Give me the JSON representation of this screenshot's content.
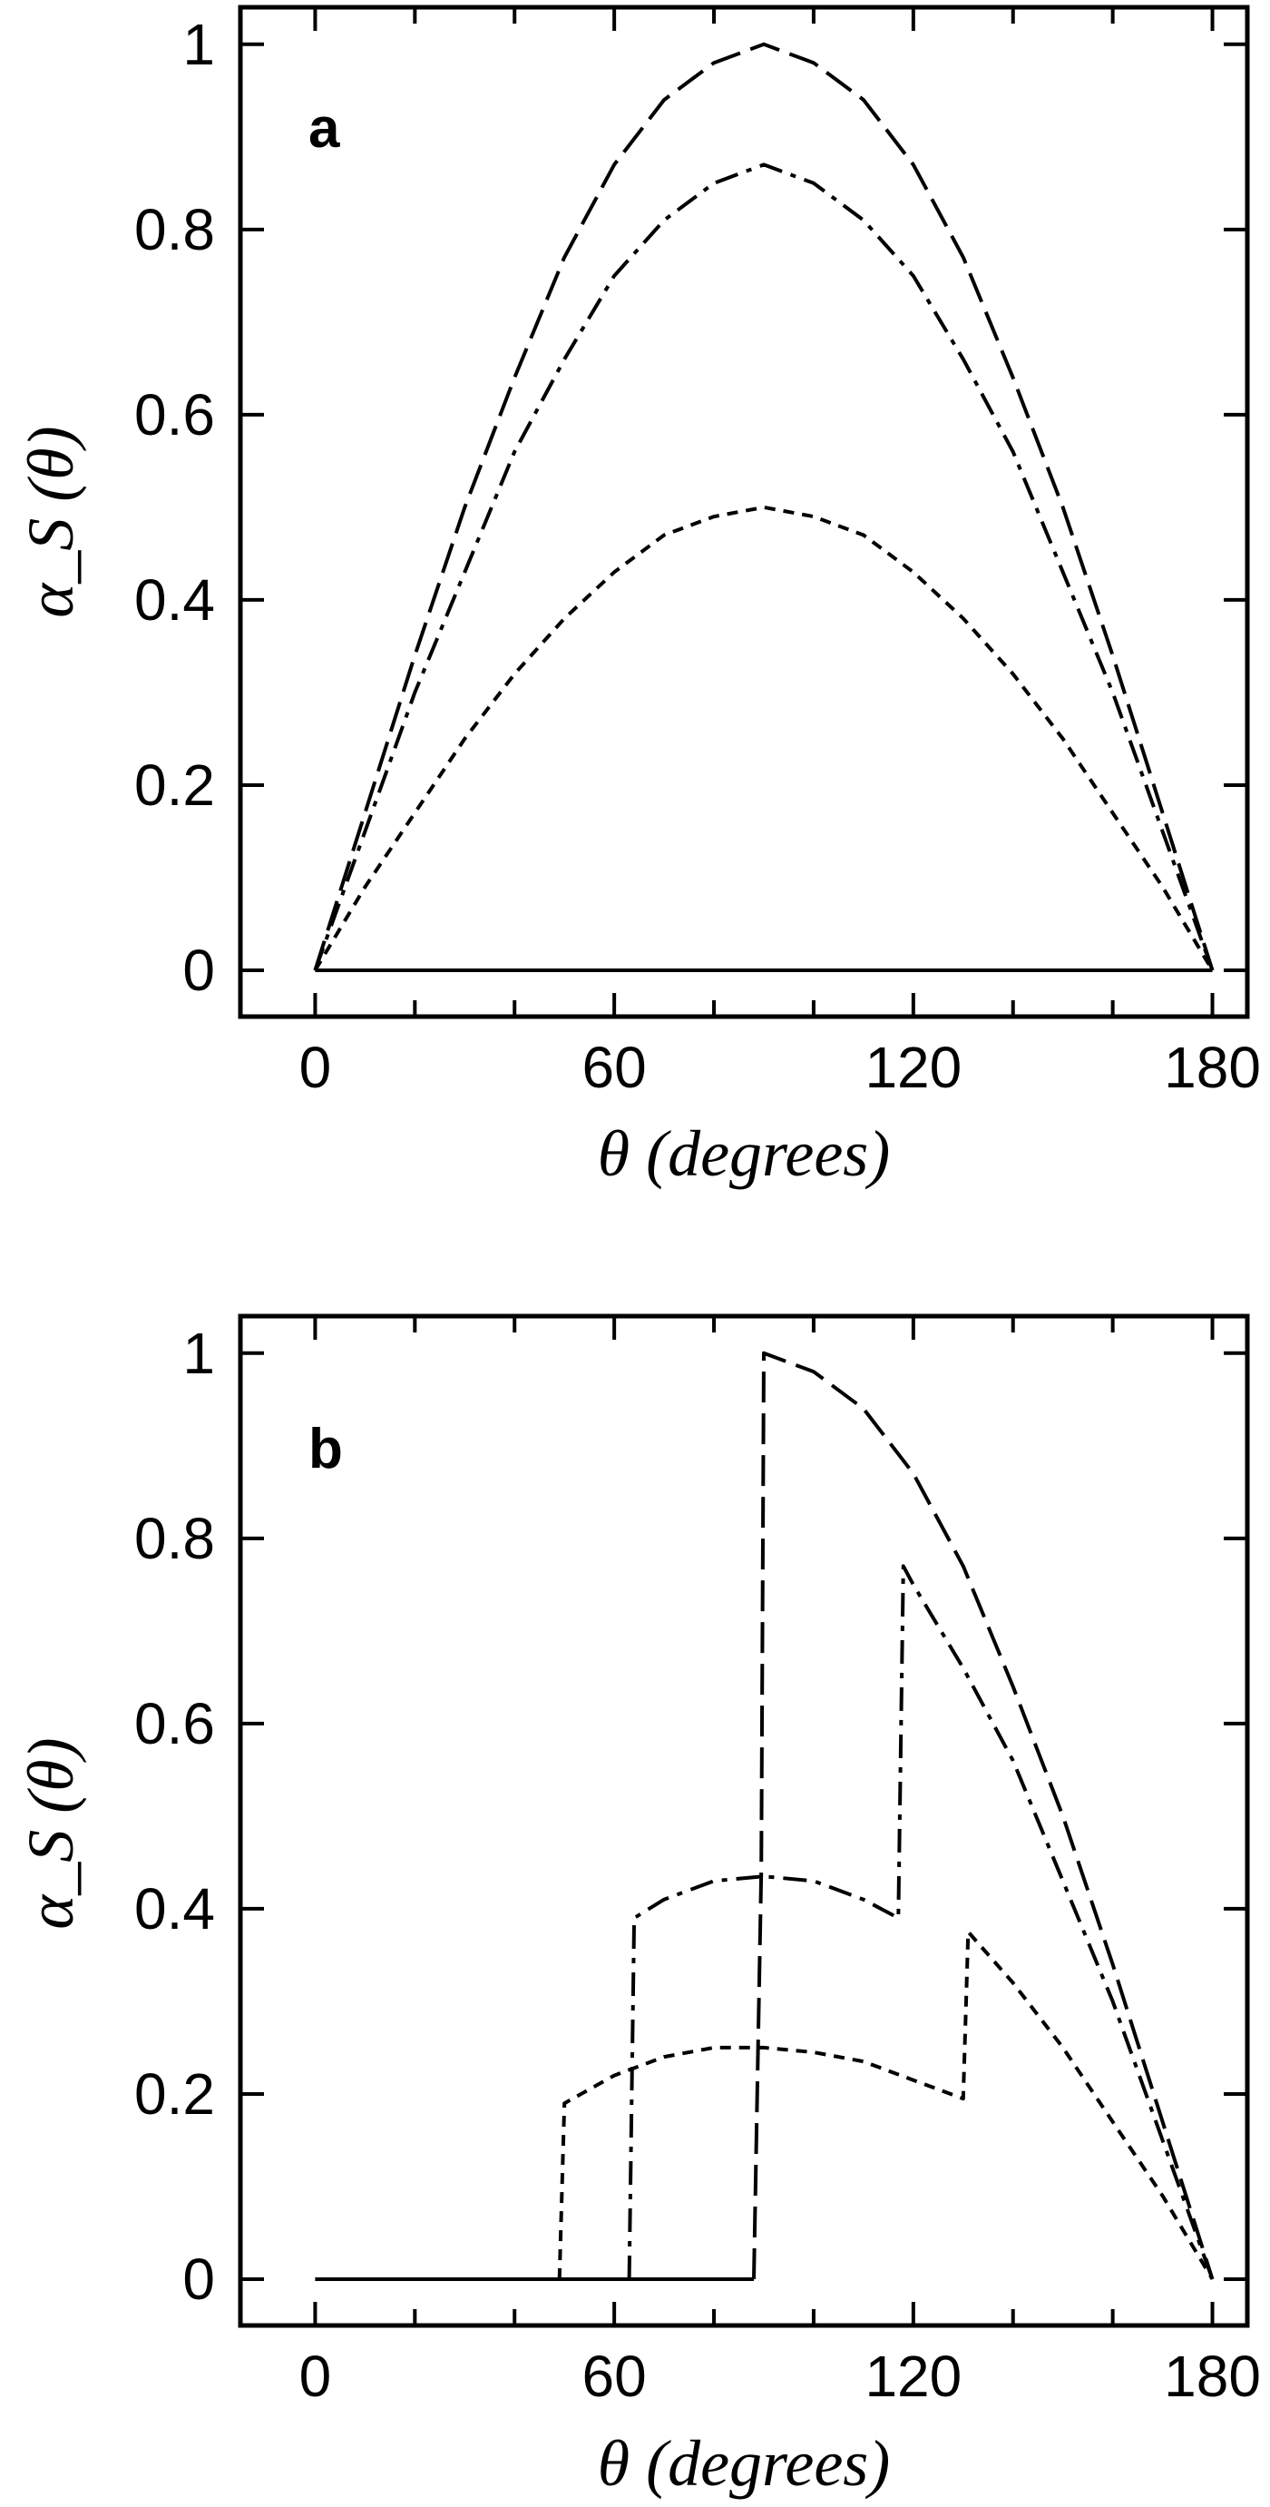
{
  "chart_data": [
    {
      "panel": "a",
      "type": "line",
      "xlabel": "θ (degrees)",
      "ylabel": "α_S (θ)",
      "xlim": [
        -15,
        187
      ],
      "ylim": [
        -0.05,
        1.04
      ],
      "xticks": [
        0,
        60,
        120,
        180
      ],
      "xtick_labels": [
        "0",
        "60",
        "120",
        "180"
      ],
      "xminor_step": 20,
      "yticks": [
        0,
        0.2,
        0.4,
        0.6,
        0.8,
        1
      ],
      "ytick_labels": [
        "0",
        "0.2",
        "0.4",
        "0.6",
        "0.8",
        "1"
      ],
      "grid": false,
      "series": [
        {
          "style": "long-dash",
          "x": [
            0,
            10,
            20,
            30,
            40,
            50,
            60,
            70,
            80,
            90,
            100,
            110,
            120,
            130,
            140,
            150,
            160,
            170,
            180
          ],
          "y": [
            0,
            0.17,
            0.34,
            0.5,
            0.64,
            0.77,
            0.87,
            0.94,
            0.98,
            1.0,
            0.98,
            0.94,
            0.87,
            0.77,
            0.64,
            0.5,
            0.34,
            0.17,
            0
          ]
        },
        {
          "style": "dash-dot",
          "x": [
            0,
            10,
            20,
            30,
            40,
            50,
            60,
            70,
            80,
            90,
            100,
            110,
            120,
            130,
            140,
            150,
            160,
            170,
            180
          ],
          "y": [
            0,
            0.15,
            0.3,
            0.43,
            0.56,
            0.66,
            0.75,
            0.81,
            0.85,
            0.87,
            0.85,
            0.81,
            0.75,
            0.66,
            0.56,
            0.43,
            0.3,
            0.15,
            0
          ]
        },
        {
          "style": "short-dash",
          "x": [
            0,
            10,
            20,
            30,
            40,
            50,
            60,
            70,
            80,
            90,
            100,
            110,
            120,
            130,
            140,
            150,
            160,
            170,
            180
          ],
          "y": [
            0,
            0.09,
            0.17,
            0.25,
            0.32,
            0.38,
            0.43,
            0.47,
            0.49,
            0.5,
            0.49,
            0.47,
            0.43,
            0.38,
            0.32,
            0.25,
            0.17,
            0.09,
            0
          ]
        },
        {
          "style": "solid",
          "x": [
            0,
            180
          ],
          "y": [
            0,
            0
          ]
        }
      ]
    },
    {
      "panel": "b",
      "type": "line",
      "xlabel": "θ (degrees)",
      "ylabel": "α_S (θ)",
      "xlim": [
        -15,
        187
      ],
      "ylim": [
        -0.05,
        1.04
      ],
      "xticks": [
        0,
        60,
        120,
        180
      ],
      "xtick_labels": [
        "0",
        "60",
        "120",
        "180"
      ],
      "xminor_step": 20,
      "yticks": [
        0,
        0.2,
        0.4,
        0.6,
        0.8,
        1
      ],
      "ytick_labels": [
        "0",
        "0.2",
        "0.4",
        "0.6",
        "0.8",
        "1"
      ],
      "grid": false,
      "series": [
        {
          "style": "long-dash",
          "x": [
            88,
            89.5,
            90,
            100,
            110,
            120,
            130,
            140,
            150,
            160,
            170,
            180
          ],
          "y": [
            0,
            0.44,
            1.0,
            0.98,
            0.94,
            0.87,
            0.77,
            0.64,
            0.5,
            0.34,
            0.17,
            0
          ]
        },
        {
          "style": "dash-dot",
          "x": [
            63,
            64,
            70,
            80,
            90,
            100,
            110,
            117,
            118,
            120,
            130,
            140,
            150,
            160,
            170,
            180
          ],
          "y": [
            0,
            0.39,
            0.41,
            0.43,
            0.435,
            0.43,
            0.41,
            0.39,
            0.77,
            0.75,
            0.66,
            0.56,
            0.43,
            0.3,
            0.15,
            0
          ]
        },
        {
          "style": "short-dash",
          "x": [
            49,
            50,
            60,
            70,
            80,
            90,
            100,
            110,
            120,
            130,
            131,
            140,
            150,
            160,
            170,
            180
          ],
          "y": [
            0,
            0.19,
            0.22,
            0.24,
            0.25,
            0.25,
            0.245,
            0.235,
            0.215,
            0.195,
            0.375,
            0.32,
            0.25,
            0.17,
            0.09,
            0
          ]
        },
        {
          "style": "solid",
          "x": [
            0,
            88
          ],
          "y": [
            0,
            0
          ]
        }
      ]
    }
  ]
}
